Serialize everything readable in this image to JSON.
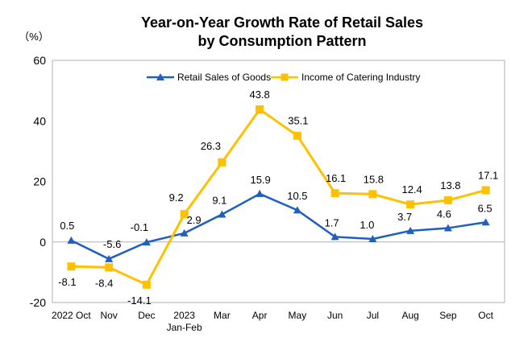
{
  "chart_data": {
    "type": "line",
    "title": "Year-on-Year Growth Rate of Retail Sales",
    "subtitle": "by Consumption Pattern",
    "unit_label": "（%）",
    "ylim": [
      -20,
      60
    ],
    "yticks": [
      -20,
      0,
      20,
      40,
      60
    ],
    "grid": false,
    "legend_position": "top-center",
    "categories": [
      [
        "2022 Oct"
      ],
      [
        "Nov"
      ],
      [
        "Dec"
      ],
      [
        "2023",
        "Jan-Feb"
      ],
      [
        "Mar"
      ],
      [
        "Apr"
      ],
      [
        "May"
      ],
      [
        "Jun"
      ],
      [
        "Jul"
      ],
      [
        "Aug"
      ],
      [
        "Sep"
      ],
      [
        "Oct"
      ]
    ],
    "series": [
      {
        "name": "Retail Sales of Goods",
        "color": "#1f5fbf",
        "marker": "triangle",
        "values": [
          0.5,
          -5.6,
          -0.1,
          2.9,
          9.1,
          15.9,
          10.5,
          1.7,
          1.0,
          3.7,
          4.6,
          6.5
        ],
        "labels": [
          "0.5",
          "-5.6",
          "-0.1",
          "2.9",
          "9.1",
          "15.9",
          "10.5",
          "1.7",
          "1.0",
          "3.7",
          "4.6",
          "6.5"
        ]
      },
      {
        "name": "Income of Catering Industry",
        "color": "#ffc000",
        "marker": "square",
        "values": [
          -8.1,
          -8.4,
          -14.1,
          9.2,
          26.3,
          43.8,
          35.1,
          16.1,
          15.8,
          12.4,
          13.8,
          17.1
        ],
        "labels": [
          "-8.1",
          "-8.4",
          "-14.1",
          "9.2",
          "26.3",
          "43.8",
          "35.1",
          "16.1",
          "15.8",
          "12.4",
          "13.8",
          "17.1"
        ]
      }
    ]
  }
}
